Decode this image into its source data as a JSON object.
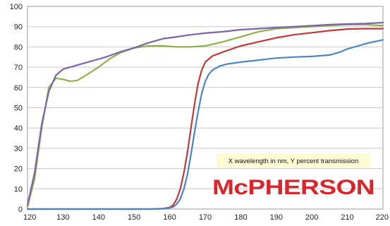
{
  "chart_data": {
    "type": "line",
    "title": "",
    "xlabel": "",
    "ylabel": "",
    "xlim": [
      120,
      220
    ],
    "ylim": [
      0,
      100
    ],
    "x_ticks": [
      120,
      130,
      140,
      150,
      160,
      170,
      180,
      190,
      200,
      210,
      220
    ],
    "y_ticks": [
      0,
      10,
      20,
      30,
      40,
      50,
      60,
      70,
      80,
      90,
      100
    ],
    "grid": true,
    "legend": "none",
    "annotation": "X wavelength in nm, Y percent transmission",
    "logo_text": "McPHERSON",
    "series": [
      {
        "color": "#8fb14a",
        "points": [
          [
            120,
            1
          ],
          [
            122,
            15
          ],
          [
            124,
            40
          ],
          [
            126,
            60
          ],
          [
            128,
            64.5
          ],
          [
            130,
            64
          ],
          [
            132,
            63
          ],
          [
            134,
            63.5
          ],
          [
            136,
            65.5
          ],
          [
            140,
            70
          ],
          [
            143,
            74
          ],
          [
            146,
            77
          ],
          [
            150,
            79.5
          ],
          [
            154,
            80.5
          ],
          [
            158,
            80.5
          ],
          [
            162,
            80
          ],
          [
            166,
            80
          ],
          [
            170,
            80.5
          ],
          [
            175,
            82.5
          ],
          [
            180,
            85
          ],
          [
            185,
            87.5
          ],
          [
            190,
            89
          ],
          [
            195,
            89.5
          ],
          [
            200,
            90
          ],
          [
            205,
            90.5
          ],
          [
            210,
            91
          ],
          [
            215,
            91
          ],
          [
            220,
            90.5
          ]
        ]
      },
      {
        "color": "#7d63a9",
        "points": [
          [
            120,
            2
          ],
          [
            122,
            18
          ],
          [
            124,
            42
          ],
          [
            126,
            58
          ],
          [
            128,
            66
          ],
          [
            130,
            69
          ],
          [
            134,
            71
          ],
          [
            138,
            73
          ],
          [
            142,
            75
          ],
          [
            146,
            77.5
          ],
          [
            150,
            79.5
          ],
          [
            154,
            82
          ],
          [
            158,
            84
          ],
          [
            162,
            85
          ],
          [
            166,
            86
          ],
          [
            170,
            86.8
          ],
          [
            175,
            87.5
          ],
          [
            180,
            88.5
          ],
          [
            185,
            89
          ],
          [
            190,
            89.5
          ],
          [
            195,
            90
          ],
          [
            200,
            90.5
          ],
          [
            205,
            91
          ],
          [
            210,
            91.3
          ],
          [
            215,
            91.5
          ],
          [
            220,
            92
          ]
        ]
      },
      {
        "color": "#c0393b",
        "points": [
          [
            120,
            0
          ],
          [
            150,
            0
          ],
          [
            155,
            0
          ],
          [
            158,
            0.2
          ],
          [
            160,
            0.8
          ],
          [
            161,
            2
          ],
          [
            162,
            5
          ],
          [
            163,
            10
          ],
          [
            164,
            18
          ],
          [
            165,
            28
          ],
          [
            166,
            40
          ],
          [
            167,
            52
          ],
          [
            168,
            62
          ],
          [
            169,
            68.5
          ],
          [
            170,
            72.5
          ],
          [
            172,
            75.5
          ],
          [
            175,
            77.5
          ],
          [
            180,
            80.5
          ],
          [
            185,
            82.5
          ],
          [
            190,
            84.5
          ],
          [
            195,
            86
          ],
          [
            200,
            87
          ],
          [
            205,
            88
          ],
          [
            210,
            88.8
          ],
          [
            215,
            89
          ],
          [
            220,
            89
          ]
        ]
      },
      {
        "color": "#4a86c5",
        "points": [
          [
            120,
            0
          ],
          [
            155,
            0
          ],
          [
            159,
            0.2
          ],
          [
            161,
            1
          ],
          [
            162,
            2.5
          ],
          [
            163,
            5
          ],
          [
            164,
            10
          ],
          [
            165,
            17
          ],
          [
            166,
            27
          ],
          [
            167,
            38
          ],
          [
            168,
            48
          ],
          [
            169,
            57
          ],
          [
            170,
            63
          ],
          [
            171,
            66.5
          ],
          [
            172,
            68.5
          ],
          [
            174,
            70.5
          ],
          [
            176,
            71.5
          ],
          [
            180,
            72.5
          ],
          [
            185,
            73.5
          ],
          [
            190,
            74.5
          ],
          [
            195,
            75
          ],
          [
            200,
            75.3
          ],
          [
            205,
            76
          ],
          [
            208,
            77.5
          ],
          [
            210,
            79
          ],
          [
            213,
            80.5
          ],
          [
            216,
            82
          ],
          [
            220,
            83.5
          ]
        ]
      }
    ]
  }
}
